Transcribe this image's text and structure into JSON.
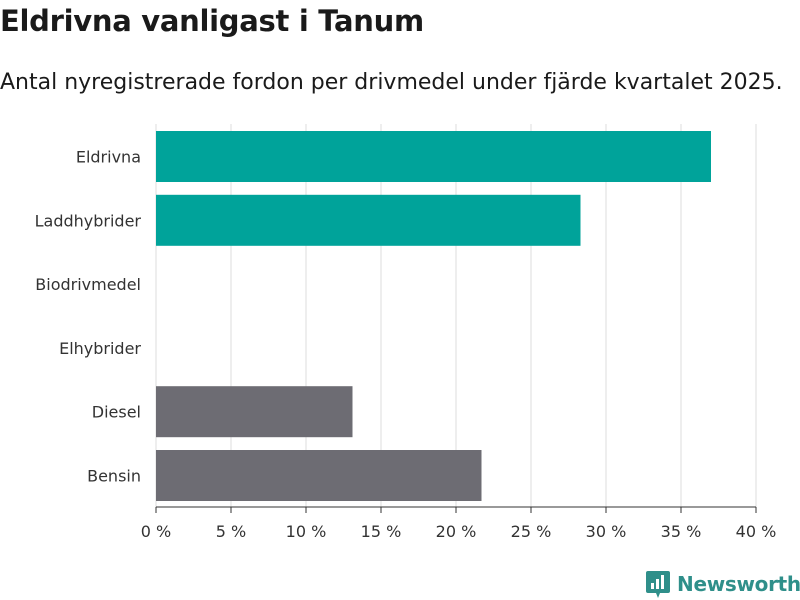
{
  "title": "Eldrivna vanligast i Tanum",
  "subtitle": "Antal nyregistrerade fordon per drivmedel under fjärde kvartalet 2025.",
  "brand": {
    "name": "Newsworthy",
    "icon": "newsworthy-logo-icon",
    "color": "#2f8f8a"
  },
  "colors": {
    "electric": "#00a39a",
    "fossil": "#6d6c73",
    "grid": "#dcdcdc",
    "axis": "#333333"
  },
  "chart_data": {
    "type": "bar",
    "orientation": "horizontal",
    "title": "Eldrivna vanligast i Tanum",
    "subtitle": "Antal nyregistrerade fordon per drivmedel under fjärde kvartalet 2025.",
    "xlabel": "",
    "ylabel": "",
    "xlim": [
      0,
      40
    ],
    "xticks": [
      0,
      5,
      10,
      15,
      20,
      25,
      30,
      35,
      40
    ],
    "tick_suffix": " %",
    "grid": true,
    "categories": [
      "Eldrivna",
      "Laddhybrider",
      "Biodrivmedel",
      "Elhybrider",
      "Diesel",
      "Bensin"
    ],
    "values": [
      37,
      28.3,
      0,
      0,
      13.1,
      21.7
    ],
    "bar_groups": [
      "electric",
      "electric",
      "electric",
      "electric",
      "fossil",
      "fossil"
    ]
  }
}
